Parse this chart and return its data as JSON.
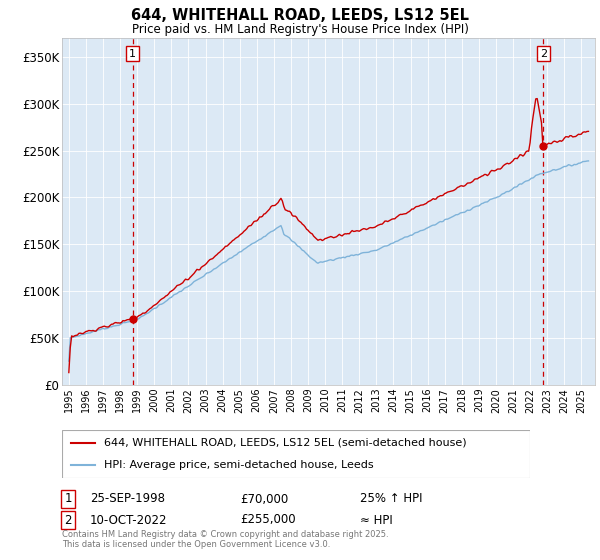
{
  "title": "644, WHITEHALL ROAD, LEEDS, LS12 5EL",
  "subtitle": "Price paid vs. HM Land Registry's House Price Index (HPI)",
  "plot_bg_color": "#dce9f5",
  "hpi_line_color": "#7fb3d9",
  "price_line_color": "#cc0000",
  "dashed_line_color": "#cc0000",
  "ylabel_ticks": [
    "£0",
    "£50K",
    "£100K",
    "£150K",
    "£200K",
    "£250K",
    "£300K",
    "£350K"
  ],
  "ytick_values": [
    0,
    50000,
    100000,
    150000,
    200000,
    250000,
    300000,
    350000
  ],
  "ylim": [
    0,
    370000
  ],
  "sale1_date": 1998.73,
  "sale1_price": 70000,
  "sale1_label": "1",
  "sale2_date": 2022.78,
  "sale2_price": 255000,
  "sale2_label": "2",
  "legend_line1": "644, WHITEHALL ROAD, LEEDS, LS12 5EL (semi-detached house)",
  "legend_line2": "HPI: Average price, semi-detached house, Leeds",
  "annotation1_box": "1",
  "annotation1_date": "25-SEP-1998",
  "annotation1_price": "£70,000",
  "annotation1_hpi": "25% ↑ HPI",
  "annotation2_box": "2",
  "annotation2_date": "10-OCT-2022",
  "annotation2_price": "£255,000",
  "annotation2_hpi": "≈ HPI",
  "footer": "Contains HM Land Registry data © Crown copyright and database right 2025.\nThis data is licensed under the Open Government Licence v3.0."
}
